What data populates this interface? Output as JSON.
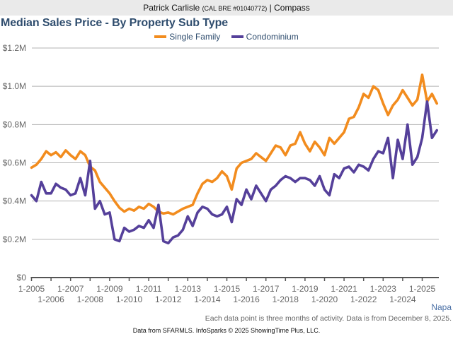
{
  "header": {
    "agent_name": "Patrick Carlisle",
    "license": "(CAL BRE #01040772)",
    "separator": "|",
    "brokerage": "Compass"
  },
  "region_label": "Napa",
  "note": "Each data point is three months of activity. Data is from December 8, 2025.",
  "footer": "Data from SFARMLS. InfoSparks © 2025 ShowingTime Plus, LLC.",
  "chart_data": {
    "type": "line",
    "title": "Median Sales Price - By Property Sub Type",
    "xlabel": "",
    "ylabel": "",
    "ylim": [
      0,
      1.2
    ],
    "y_unit": "millions USD",
    "y_ticks": [
      {
        "value": 0,
        "label": "$0"
      },
      {
        "value": 0.2,
        "label": "$0.2M"
      },
      {
        "value": 0.4,
        "label": "$0.4M"
      },
      {
        "value": 0.6,
        "label": "$0.6M"
      },
      {
        "value": 0.8,
        "label": "$0.8M"
      },
      {
        "value": 1.0,
        "label": "$1.0M"
      },
      {
        "value": 1.2,
        "label": "$1.2M"
      }
    ],
    "x_range": [
      2005.0,
      2025.85
    ],
    "x_ticks": [
      {
        "value": 2005,
        "label": "1-2005"
      },
      {
        "value": 2006,
        "label": "1-2006"
      },
      {
        "value": 2007,
        "label": "1-2007"
      },
      {
        "value": 2008,
        "label": "1-2008"
      },
      {
        "value": 2009,
        "label": "1-2009"
      },
      {
        "value": 2010,
        "label": "1-2010"
      },
      {
        "value": 2011,
        "label": "1-2011"
      },
      {
        "value": 2012,
        "label": "1-2012"
      },
      {
        "value": 2013,
        "label": "1-2013"
      },
      {
        "value": 2014,
        "label": "1-2014"
      },
      {
        "value": 2015,
        "label": "1-2015"
      },
      {
        "value": 2016,
        "label": "1-2016"
      },
      {
        "value": 2017,
        "label": "1-2017"
      },
      {
        "value": 2018,
        "label": "1-2018"
      },
      {
        "value": 2019,
        "label": "1-2019"
      },
      {
        "value": 2020,
        "label": "1-2020"
      },
      {
        "value": 2021,
        "label": "1-2021"
      },
      {
        "value": 2022,
        "label": "1-2022"
      },
      {
        "value": 2023,
        "label": "1-2023"
      },
      {
        "value": 2024,
        "label": "1-2024"
      },
      {
        "value": 2025,
        "label": "1-2025"
      }
    ],
    "grid": true,
    "legend": "top-center",
    "x_start": 2005.0,
    "x_step": 0.25,
    "series": [
      {
        "name": "Single Family",
        "color": "#f28c1e",
        "values": [
          0.575,
          0.59,
          0.62,
          0.66,
          0.64,
          0.655,
          0.63,
          0.665,
          0.64,
          0.62,
          0.66,
          0.64,
          0.58,
          0.56,
          0.5,
          0.47,
          0.44,
          0.4,
          0.365,
          0.345,
          0.36,
          0.35,
          0.37,
          0.36,
          0.385,
          0.37,
          0.345,
          0.335,
          0.34,
          0.33,
          0.345,
          0.36,
          0.37,
          0.38,
          0.44,
          0.49,
          0.51,
          0.5,
          0.52,
          0.555,
          0.53,
          0.46,
          0.57,
          0.6,
          0.61,
          0.62,
          0.65,
          0.63,
          0.61,
          0.65,
          0.69,
          0.68,
          0.64,
          0.69,
          0.7,
          0.76,
          0.7,
          0.66,
          0.71,
          0.68,
          0.64,
          0.73,
          0.7,
          0.73,
          0.76,
          0.83,
          0.84,
          0.89,
          0.96,
          0.94,
          1.0,
          0.98,
          0.91,
          0.85,
          0.9,
          0.93,
          0.98,
          0.94,
          0.9,
          0.93,
          1.06,
          0.92,
          0.96,
          0.91
        ]
      },
      {
        "name": "Condominium",
        "color": "#55409a",
        "values": [
          0.43,
          0.4,
          0.5,
          0.44,
          0.44,
          0.49,
          0.47,
          0.46,
          0.43,
          0.44,
          0.52,
          0.43,
          0.61,
          0.36,
          0.4,
          0.33,
          0.34,
          0.2,
          0.19,
          0.26,
          0.24,
          0.25,
          0.27,
          0.26,
          0.3,
          0.26,
          0.38,
          0.19,
          0.18,
          0.21,
          0.22,
          0.25,
          0.32,
          0.27,
          0.34,
          0.37,
          0.36,
          0.33,
          0.32,
          0.33,
          0.37,
          0.29,
          0.41,
          0.38,
          0.46,
          0.41,
          0.48,
          0.44,
          0.4,
          0.46,
          0.48,
          0.51,
          0.53,
          0.52,
          0.5,
          0.52,
          0.52,
          0.51,
          0.48,
          0.53,
          0.46,
          0.43,
          0.54,
          0.52,
          0.57,
          0.58,
          0.55,
          0.59,
          0.58,
          0.56,
          0.62,
          0.66,
          0.65,
          0.73,
          0.52,
          0.72,
          0.62,
          0.8,
          0.59,
          0.63,
          0.73,
          0.92,
          0.73,
          0.77
        ]
      }
    ]
  }
}
